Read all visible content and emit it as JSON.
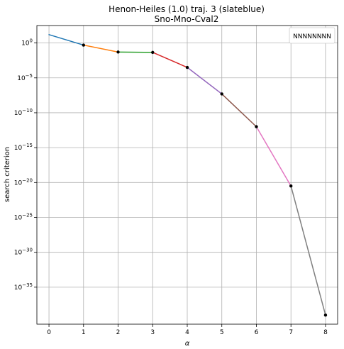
{
  "chart_data": {
    "type": "line",
    "title": "Henon-Heiles (1.0) traj. 3 (slateblue)",
    "subtitle": "Sno-Mno-Cval2",
    "xlabel": "α",
    "ylabel": "search criterion",
    "yscale": "log",
    "xlim": [
      -0.35,
      8.35
    ],
    "ylim_exponent": [
      -40.3,
      2.5
    ],
    "grid": true,
    "legend": {
      "placement": "top-right",
      "entries": [
        "NNNNNNNN"
      ]
    },
    "x_ticks": [
      0,
      1,
      2,
      3,
      4,
      5,
      6,
      7,
      8
    ],
    "x_tick_labels": [
      "0",
      "1",
      "2",
      "3",
      "4",
      "5",
      "6",
      "7",
      "8"
    ],
    "y_tick_exponents": [
      0,
      -5,
      -10,
      -15,
      -20,
      -25,
      -30,
      -35
    ],
    "y_tick_labels": [
      "10^0",
      "10^-5",
      "10^-10",
      "10^-15",
      "10^-20",
      "10^-25",
      "10^-30",
      "10^-35"
    ],
    "x": [
      0,
      1,
      2,
      3,
      4,
      5,
      6,
      7,
      8
    ],
    "y_exponent": [
      1.2,
      -0.3,
      -1.3,
      -1.35,
      -3.5,
      -7.3,
      -12.0,
      -20.5,
      -39.0
    ],
    "markers": [
      1,
      2,
      3,
      4,
      5,
      6,
      7,
      8
    ],
    "segment_colors": [
      "#1f77b4",
      "#ff7f0e",
      "#2ca02c",
      "#d62728",
      "#9467bd",
      "#8c564b",
      "#e377c2",
      "#7f7f7f"
    ],
    "marker_color": "#000000"
  }
}
